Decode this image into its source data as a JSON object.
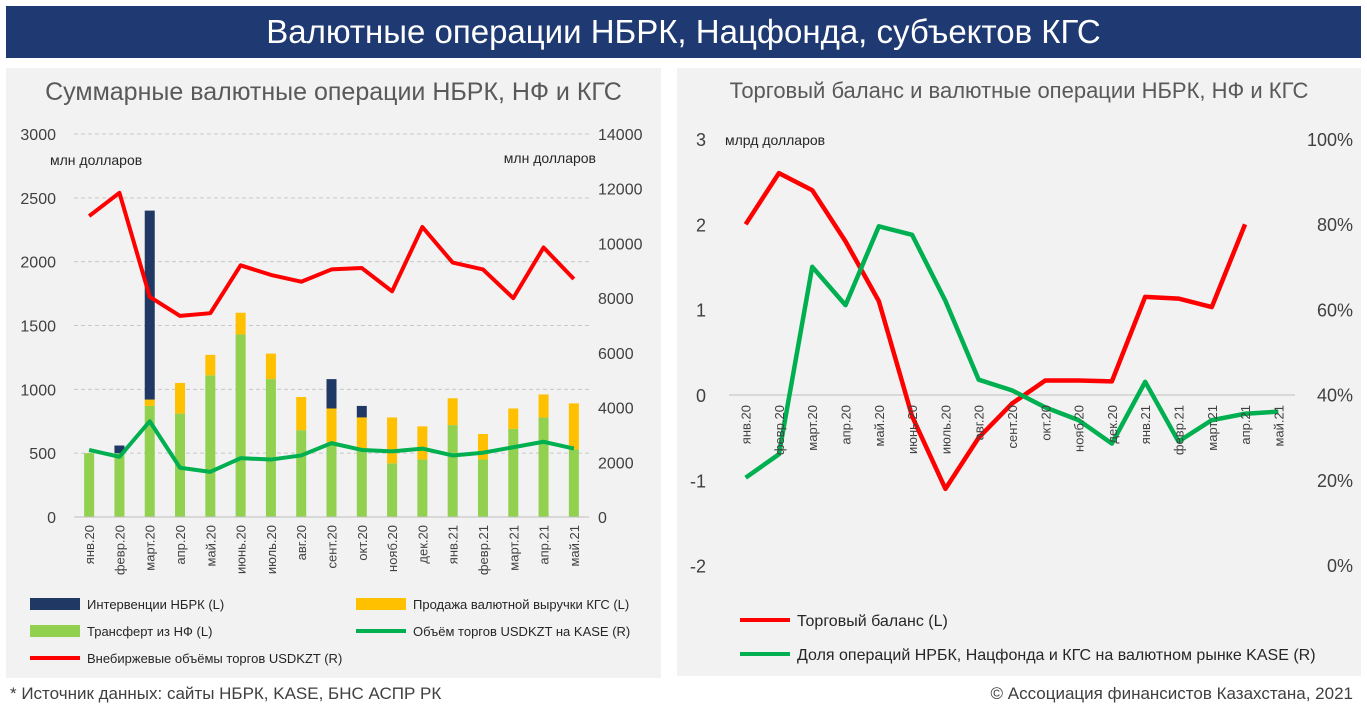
{
  "banner": {
    "title": "Валютные операции НБРК, Нацфонда, субъектов КГС"
  },
  "footer": {
    "source": "* Источник данных: сайты НБРК, KASE, БНС АСПР РК",
    "copyright": "© Ассоциация финансистов Казахстана, 2021"
  },
  "chart_data": [
    {
      "type": "bar",
      "title": "Суммарные валютные операции НБРК, НФ и КГС",
      "ylabel_left": "млн долларов",
      "ylabel_right": "млн долларов",
      "ylim_left": [
        0,
        3000
      ],
      "ylim_right": [
        0,
        14000
      ],
      "yticks_left": [
        "0",
        "500",
        "1000",
        "1500",
        "2000",
        "2500",
        "3000"
      ],
      "yticks_right": [
        "0",
        "2000",
        "4000",
        "6000",
        "8000",
        "10000",
        "12000",
        "14000"
      ],
      "grid": true,
      "legend_position": "bottom",
      "categories": [
        "янв.20",
        "февр.20",
        "март.20",
        "апр.20",
        "май.20",
        "июнь.20",
        "июль.20",
        "авг.20",
        "сент.20",
        "окт.20",
        "нояб.20",
        "дек.20",
        "янв.21",
        "февр.21",
        "март.21",
        "апр.21",
        "май.21"
      ],
      "series": [
        {
          "name": "Трансферт из НФ (L)",
          "kind": "stacked-bar",
          "axis": "left",
          "color": "#92d050",
          "values": [
            500,
            500,
            870,
            810,
            1110,
            1430,
            1080,
            680,
            570,
            520,
            420,
            450,
            720,
            450,
            690,
            780,
            530
          ]
        },
        {
          "name": "Продажа валютной выручки КГС (L)",
          "kind": "stacked-bar",
          "axis": "left",
          "color": "#ffc000",
          "values": [
            0,
            0,
            50,
            240,
            160,
            170,
            200,
            260,
            280,
            260,
            360,
            260,
            210,
            200,
            160,
            180,
            360
          ]
        },
        {
          "name": "Интервенции НБРК (L)",
          "kind": "stacked-bar",
          "axis": "left",
          "color": "#1f3864",
          "values": [
            0,
            60,
            1480,
            0,
            0,
            0,
            0,
            0,
            230,
            90,
            0,
            0,
            0,
            0,
            0,
            0,
            0
          ]
        },
        {
          "name": "Объём торгов USDKZT на KASE (R)",
          "kind": "line",
          "axis": "right",
          "color": "#00b050",
          "values": [
            2450,
            2200,
            3500,
            1800,
            1650,
            2150,
            2100,
            2250,
            2700,
            2450,
            2400,
            2500,
            2250,
            2350,
            2550,
            2750,
            2500
          ]
        },
        {
          "name": "Внебиржевые объёмы торгов USDKZT (R)",
          "kind": "line",
          "axis": "right",
          "color": "#ff0000",
          "values": [
            11000,
            11850,
            8050,
            7350,
            7450,
            9200,
            8850,
            8600,
            9050,
            9100,
            8250,
            10600,
            9300,
            9050,
            8000,
            9850,
            8700
          ]
        }
      ]
    },
    {
      "type": "line",
      "title": "Торговый баланс и валютные операции НБРК, НФ и КГС",
      "ylabel_left": "млрд долларов",
      "ylim_left": [
        -2,
        3
      ],
      "ylim_right": [
        0,
        100
      ],
      "yticks_left": [
        "-2",
        "-1",
        "0",
        "1",
        "2",
        "3"
      ],
      "yticks_right": [
        "0%",
        "20%",
        "40%",
        "60%",
        "80%",
        "100%"
      ],
      "grid": false,
      "legend_position": "bottom",
      "categories": [
        "янв.20",
        "февр.20",
        "март.20",
        "апр.20",
        "май.20",
        "июнь.20",
        "июль.20",
        "авг.20",
        "сент.20",
        "окт.20",
        "нояб.20",
        "дек.20",
        "янв.21",
        "февр.21",
        "март.21",
        "апр.21",
        "май.21"
      ],
      "series": [
        {
          "name": "Торговый баланс (L)",
          "axis": "left",
          "color": "#ff0000",
          "values": [
            2.0,
            2.6,
            2.4,
            1.8,
            1.1,
            -0.25,
            -1.1,
            -0.5,
            -0.1,
            0.17,
            0.17,
            0.16,
            1.15,
            1.13,
            1.03,
            2.0,
            null
          ]
        },
        {
          "name": "Доля операций НРБК, Нацфонда и КГС на валютном рынке KASE (R)",
          "axis": "right",
          "color": "#00b050",
          "values": [
            20.5,
            26,
            70,
            61,
            79.5,
            77.5,
            62,
            43.5,
            41,
            37,
            34,
            28.5,
            43,
            29,
            34,
            35.5,
            36
          ]
        }
      ]
    }
  ]
}
